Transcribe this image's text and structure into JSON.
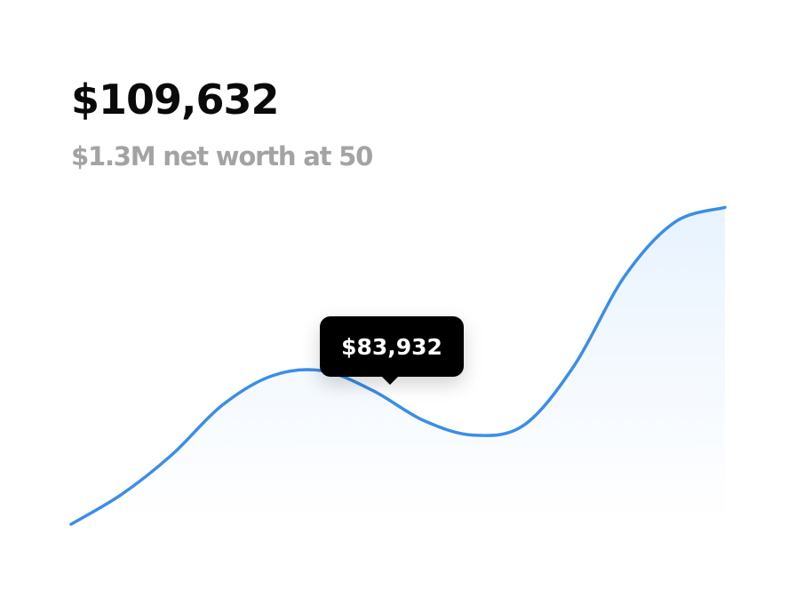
{
  "header": {
    "value": "$109,632",
    "subtitle": "$1.3M net worth at 50"
  },
  "tooltip": {
    "label": "$83,932"
  },
  "colors": {
    "line": "#3a8ee6",
    "fill_top": "#e8f3fe",
    "fill_bottom": "#ffffff",
    "tooltip_bg": "#000000"
  },
  "chart_data": {
    "type": "area",
    "title": "",
    "xlabel": "",
    "ylabel": "",
    "grid": false,
    "legend": "none",
    "series": [
      {
        "values": [
          0,
          6,
          14,
          24,
          30,
          31,
          27,
          21,
          18,
          20,
          32,
          50,
          61,
          64
        ]
      }
    ],
    "ylim": [
      0,
      70
    ],
    "highlight_index": 5
  }
}
